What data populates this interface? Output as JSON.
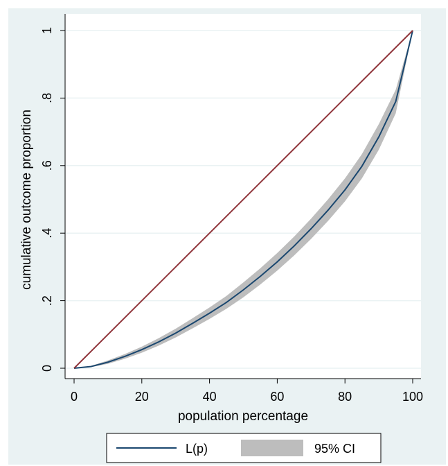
{
  "chart_data": {
    "type": "line",
    "title": "",
    "xlabel": "population percentage",
    "ylabel": "cumulative outcome proportion",
    "xlim": [
      0,
      100
    ],
    "ylim": [
      0,
      1
    ],
    "x_ticks": [
      0,
      20,
      40,
      60,
      80,
      100
    ],
    "x_tick_labels": [
      "0",
      "20",
      "40",
      "60",
      "80",
      "100"
    ],
    "y_ticks": [
      0,
      0.2,
      0.4,
      0.6,
      0.8,
      1
    ],
    "y_tick_labels": [
      "0",
      ".2",
      ".4",
      ".6",
      ".8",
      "1"
    ],
    "grid": "horizontal",
    "legend_position": "bottom",
    "series": [
      {
        "name": "L(p)",
        "kind": "line",
        "color": "#1a476f",
        "x": [
          0,
          5,
          10,
          15,
          20,
          25,
          30,
          35,
          40,
          45,
          50,
          55,
          60,
          65,
          70,
          75,
          80,
          85,
          90,
          95,
          100
        ],
        "y": [
          0,
          0.005,
          0.018,
          0.035,
          0.055,
          0.078,
          0.104,
          0.133,
          0.163,
          0.195,
          0.232,
          0.272,
          0.315,
          0.362,
          0.413,
          0.468,
          0.528,
          0.598,
          0.685,
          0.79,
          1.0
        ]
      },
      {
        "name": "95% CI",
        "kind": "band",
        "color": "#bdbdbd",
        "x": [
          0,
          5,
          10,
          15,
          20,
          25,
          30,
          35,
          40,
          45,
          50,
          55,
          60,
          65,
          70,
          75,
          80,
          85,
          90,
          95,
          100
        ],
        "lower": [
          0,
          0.003,
          0.013,
          0.028,
          0.046,
          0.067,
          0.091,
          0.118,
          0.146,
          0.176,
          0.21,
          0.248,
          0.289,
          0.334,
          0.383,
          0.436,
          0.494,
          0.562,
          0.647,
          0.755,
          1.0
        ],
        "upper": [
          0,
          0.007,
          0.023,
          0.042,
          0.064,
          0.089,
          0.117,
          0.148,
          0.18,
          0.214,
          0.254,
          0.296,
          0.341,
          0.39,
          0.443,
          0.5,
          0.562,
          0.634,
          0.723,
          0.825,
          1.0
        ]
      },
      {
        "name": "",
        "kind": "line",
        "color": "#90353b",
        "x": [
          0,
          100
        ],
        "y": [
          0,
          1
        ]
      }
    ]
  },
  "colors": {
    "outer_background": "#eaf2f3",
    "plot_background": "#ffffff",
    "grid": "#eaf2f3",
    "axis": "#000000",
    "band": "#bdbdbd",
    "curve": "#1a476f",
    "equality_line": "#90353b"
  }
}
